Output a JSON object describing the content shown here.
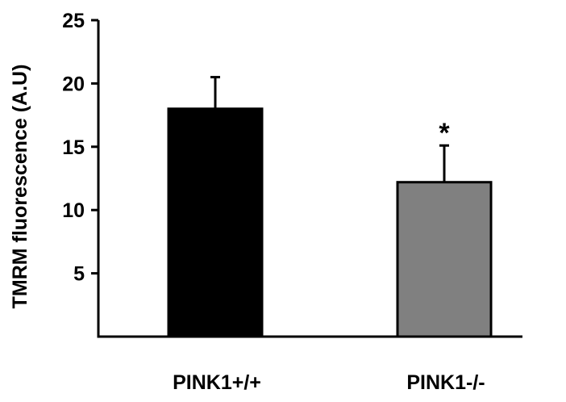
{
  "chart_data": {
    "type": "bar",
    "title": "",
    "xlabel": "",
    "ylabel": "TMRM fluorescence (A.U)",
    "ylim": [
      0,
      25
    ],
    "yticks": [
      "5",
      "10",
      "15",
      "20",
      "25"
    ],
    "categories": [
      "PINK1+/+",
      "PINK1-/-"
    ],
    "values": [
      18,
      12.2
    ],
    "error": [
      2.5,
      2.9
    ],
    "annotations": [
      "",
      "*"
    ],
    "colors": [
      "#000000",
      "#808080"
    ],
    "grid": false
  }
}
